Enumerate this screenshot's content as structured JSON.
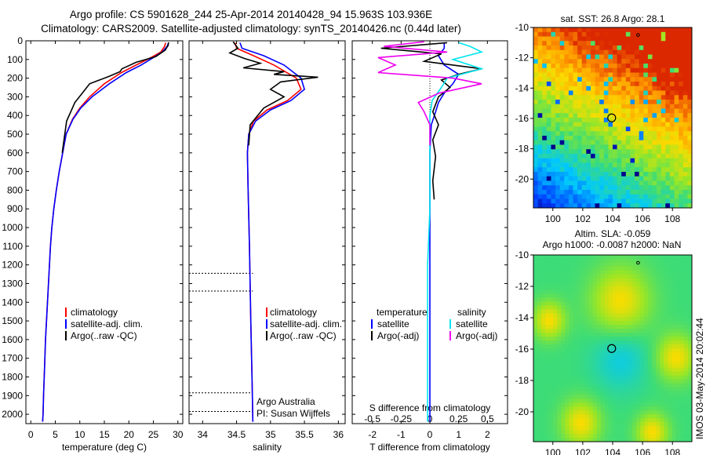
{
  "header": {
    "title_line1": "Argo profile: CS 5901628_244 25-Apr-2014 20140428_94 15.963S 103.936E",
    "title_line2": "Climatology: CARS2009. Satellite-adjusted climatology: synTS_20140426.nc (0.44d later)"
  },
  "colors": {
    "climatology": "#ff0000",
    "satellite": "#0000ff",
    "argo": "#000000",
    "salinity_satellite": "#00e5ee",
    "salinity_argo": "#ee00ee"
  },
  "depth_ticks": [
    "0",
    "100",
    "200",
    "300",
    "400",
    "500",
    "600",
    "700",
    "800",
    "900",
    "1000",
    "1100",
    "1200",
    "1300",
    "1400",
    "1500",
    "1600",
    "1700",
    "1800",
    "1900",
    "2000"
  ],
  "panels": {
    "temperature": {
      "xlabel": "temperature (deg C)",
      "xticks": [
        "0",
        "5",
        "10",
        "15",
        "20",
        "25",
        "30"
      ],
      "legend": [
        "climatology",
        "satellite-adj. clim.",
        "Argo(..raw -QC)"
      ]
    },
    "salinity": {
      "xlabel": "salinity",
      "xticks": [
        "34",
        "34.5",
        "35",
        "35.5",
        "36"
      ],
      "legend": [
        "climatology",
        "satellite-adj. clim.",
        "Argo(..raw -QC)"
      ],
      "note_line1": "Argo Australia",
      "note_line2": "PI: Susan Wijffels"
    },
    "difference": {
      "xlabel": "T difference from climatology",
      "top_label": "S difference from climatology",
      "top_ticks": [
        "-0.5",
        "-0.25",
        "0",
        "0.25",
        "0.5"
      ],
      "xticks": [
        "-2",
        "-1",
        "0",
        "1",
        "2"
      ],
      "legend_temp_title": "temperature",
      "legend_temp": [
        "satellite",
        "Argo(-adj)"
      ],
      "legend_sal_title": "salinity",
      "legend_sal": [
        "satellite",
        "Argo(-adj)"
      ]
    }
  },
  "maps": {
    "sst": {
      "title": "sat. SST: 26.8 Argo: 28.1",
      "yticks": [
        "-10",
        "-12",
        "-14",
        "-16",
        "-18",
        "-20"
      ],
      "xticks": [
        "100",
        "102",
        "104",
        "106",
        "108"
      ],
      "argo_lat": -15.963,
      "argo_lon": 103.936
    },
    "sla": {
      "title_line1": "Altim. SLA: -0.059",
      "title_line2": "Argo h1000: -0.0087 h2000: NaN",
      "yticks": [
        "-10",
        "-12",
        "-14",
        "-16",
        "-18",
        "-20"
      ],
      "xticks": [
        "100",
        "102",
        "104",
        "106",
        "108"
      ],
      "argo_lat": -15.963,
      "argo_lon": 103.936
    }
  },
  "credit": "IMOS 03-May-2014 20:02:44",
  "chart_data": [
    {
      "type": "line",
      "title": "",
      "xlabel": "temperature (deg C)",
      "ylabel": "",
      "xlim": [
        -1,
        31
      ],
      "ylim": [
        2050,
        0
      ],
      "legend_placement": "lower-middle",
      "series": [
        {
          "name": "climatology",
          "color": "#ff0000",
          "x": [
            27.5,
            27.3,
            26.5,
            24.5,
            21.5,
            18.5,
            15,
            12,
            10,
            8.5,
            7.2,
            6.5,
            5.8,
            5.2,
            4.7,
            4.3,
            4.0,
            3.6,
            3.3,
            3.0,
            2.8,
            2.6,
            2.5,
            2.4
          ],
          "y": [
            10,
            30,
            60,
            90,
            130,
            170,
            230,
            300,
            360,
            420,
            500,
            600,
            700,
            800,
            900,
            1000,
            1100,
            1300,
            1450,
            1600,
            1750,
            1900,
            2000,
            2040
          ]
        },
        {
          "name": "satellite-adj. clim.",
          "color": "#0000ff",
          "x": [
            28.1,
            27.8,
            26.8,
            25.0,
            22.5,
            19.5,
            16,
            12.5,
            10.2,
            8.6,
            7.2,
            6.5,
            5.8,
            5.2,
            4.7,
            4.3,
            4.0,
            3.6,
            3.3,
            3.0,
            2.8,
            2.6,
            2.5,
            2.4
          ],
          "y": [
            10,
            30,
            60,
            90,
            130,
            170,
            230,
            300,
            360,
            420,
            500,
            600,
            700,
            800,
            900,
            1000,
            1100,
            1300,
            1450,
            1600,
            1750,
            1900,
            2000,
            2040
          ]
        },
        {
          "name": "Argo(..raw -QC)",
          "color": "#000000",
          "x": [
            28.1,
            28.0,
            27.4,
            25.5,
            21.5,
            18.6,
            18.2,
            16.0,
            12.0,
            10.5,
            9.0,
            7.3,
            6.4
          ],
          "y": [
            8,
            25,
            50,
            85,
            115,
            150,
            165,
            190,
            230,
            280,
            330,
            430,
            600
          ]
        }
      ]
    },
    {
      "type": "line",
      "title": "",
      "xlabel": "salinity",
      "ylabel": "",
      "xlim": [
        33.8,
        36.1
      ],
      "ylim": [
        2050,
        0
      ],
      "legend_placement": "lower-right",
      "series": [
        {
          "name": "climatology",
          "color": "#ff0000",
          "x": [
            34.48,
            34.5,
            34.75,
            35.05,
            35.38,
            35.45,
            35.25,
            34.95,
            34.75,
            34.68,
            34.66,
            34.67,
            34.69,
            34.71,
            34.73,
            34.74
          ],
          "y": [
            10,
            40,
            80,
            130,
            200,
            260,
            320,
            370,
            430,
            500,
            600,
            800,
            1100,
            1500,
            1850,
            2040
          ]
        },
        {
          "name": "satellite-adj. clim.",
          "color": "#0000ff",
          "x": [
            34.55,
            34.58,
            34.9,
            35.2,
            35.45,
            35.5,
            35.3,
            35.0,
            34.78,
            34.68,
            34.66,
            34.67,
            34.69,
            34.71,
            34.73,
            34.74
          ],
          "y": [
            10,
            40,
            80,
            130,
            200,
            260,
            320,
            370,
            430,
            500,
            600,
            800,
            1100,
            1500,
            1850,
            2040
          ]
        },
        {
          "name": "Argo(..raw -QC)",
          "color": "#000000",
          "x": [
            34.45,
            34.52,
            34.4,
            34.62,
            34.85,
            34.6,
            35.2,
            35.05,
            35.7,
            35.15,
            35.0,
            35.2,
            34.9,
            34.7,
            34.68
          ],
          "y": [
            5,
            40,
            65,
            95,
            120,
            145,
            165,
            180,
            195,
            220,
            260,
            300,
            360,
            450,
            560
          ]
        }
      ]
    },
    {
      "type": "line",
      "title": "",
      "xlabel": "T difference from climatology",
      "ylabel": "",
      "top_axis_label": "S difference from climatology",
      "xlim": [
        -2.7,
        2.7
      ],
      "top_xlim": [
        -0.675,
        0.675
      ],
      "ylim": [
        2050,
        0
      ],
      "legend_placement": "lower-middle",
      "series": [
        {
          "name": "satellite",
          "group": "temperature",
          "color": "#0000ff",
          "x": [
            0.5,
            0.5,
            0.3,
            0.5,
            1.0,
            0.8,
            0.5,
            0.3,
            0.2,
            0.05,
            0,
            0,
            0,
            0,
            0
          ],
          "y": [
            10,
            40,
            80,
            130,
            180,
            230,
            280,
            330,
            380,
            450,
            600,
            900,
            1300,
            1700,
            2040
          ]
        },
        {
          "name": "Argo(-adj)",
          "group": "temperature",
          "color": "#000000",
          "x": [
            0.6,
            -1.7,
            0.4,
            -0.2,
            1.8,
            1.0,
            0.4,
            0.7,
            0.3,
            0.1,
            0.3,
            0.1,
            0.2,
            0.1,
            0.15
          ],
          "y": [
            10,
            40,
            70,
            110,
            150,
            180,
            210,
            250,
            300,
            380,
            450,
            530,
            620,
            750,
            850
          ]
        },
        {
          "name": "satellite",
          "group": "salinity",
          "color": "#00e5ee",
          "x": [
            0.25,
            0.35,
            0.45,
            0.2,
            0.45,
            0.15,
            0.1,
            0.02,
            0,
            0,
            0,
            -0.02,
            -0.02,
            -0.02
          ],
          "y": [
            10,
            30,
            60,
            100,
            150,
            200,
            250,
            320,
            400,
            600,
            900,
            1200,
            1600,
            2040
          ]
        },
        {
          "name": "Argo(-adj)",
          "group": "salinity",
          "color": "#ee00ee",
          "x": [
            -0.05,
            -0.4,
            0.15,
            -0.45,
            -0.3,
            -0.45,
            0.2,
            0.45,
            0.08,
            -0.1,
            -0.05,
            0,
            0
          ],
          "y": [
            5,
            30,
            60,
            90,
            130,
            170,
            200,
            230,
            280,
            330,
            380,
            450,
            560
          ]
        }
      ]
    },
    {
      "type": "heatmap",
      "title": "sat. SST: 26.8 Argo: 28.1",
      "xlim": [
        98.7,
        109.3
      ],
      "ylim": [
        -21.9,
        -10
      ],
      "description_values": "higher SST toward north-east (orange), lower toward south-west (blue)"
    },
    {
      "type": "heatmap",
      "title": "Altim. SLA: -0.059 / Argo h1000: -0.0087 h2000: NaN",
      "xlim": [
        98.7,
        109.3
      ],
      "ylim": [
        -21.9,
        -10
      ]
    }
  ]
}
